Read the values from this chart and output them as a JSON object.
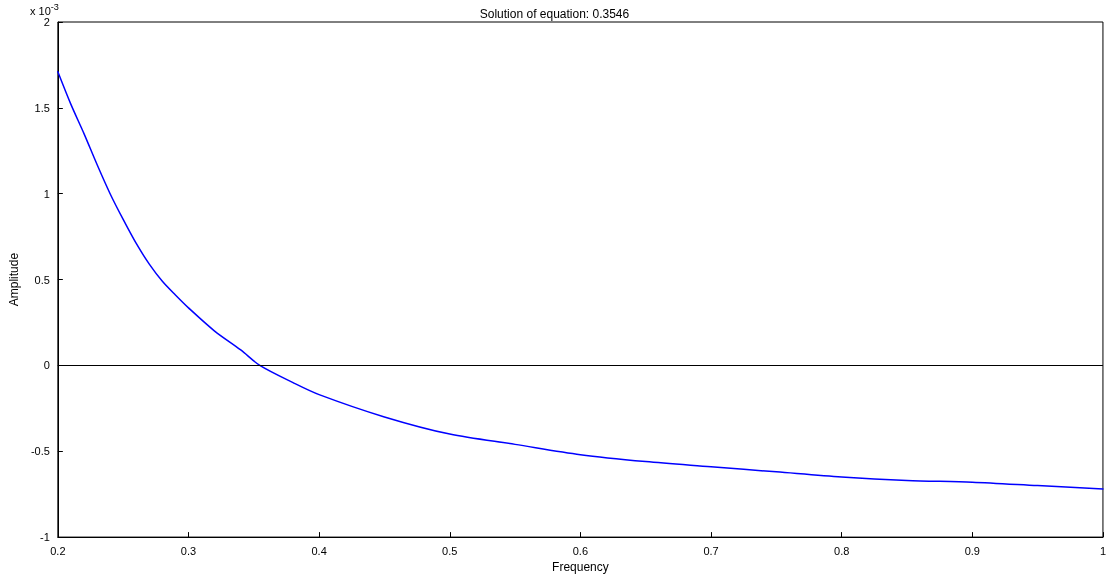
{
  "chart_data": {
    "type": "line",
    "title": "Solution of equation: 0.3546",
    "xlabel": "Frequency",
    "ylabel": "Amplitude",
    "annotations": [
      "x 10$^{-3}$"
    ],
    "series": [
      {
        "color": "#0000ff",
        "x": [
          0.2,
          0.21,
          0.22,
          0.23,
          0.24,
          0.25,
          0.26,
          0.27,
          0.28,
          0.29,
          0.3,
          0.32,
          0.34,
          0.3546,
          0.38,
          0.4,
          0.45,
          0.5,
          0.55,
          0.6,
          0.65,
          0.7,
          0.75,
          0.8,
          0.85,
          0.9,
          0.95,
          1.0
        ],
        "values": [
          1.71,
          1.52,
          1.35,
          1.17,
          1.0,
          0.85,
          0.71,
          0.59,
          0.49,
          0.41,
          0.335,
          0.2,
          0.09,
          0,
          -0.1,
          -0.17,
          -0.3,
          -0.4,
          -0.46,
          -0.52,
          -0.56,
          -0.59,
          -0.62,
          -0.65,
          -0.67,
          -0.68,
          -0.7,
          -0.72
        ]
      }
    ],
    "xlim": [
      0.2,
      1
    ],
    "xticks": [
      0.2,
      0.3,
      0.4,
      0.5,
      0.6,
      0.7,
      0.8,
      0.9,
      1
    ],
    "ylim": [
      -1,
      2
    ],
    "yticks": [
      -1,
      -0.5,
      0,
      0.5,
      1,
      1.5,
      2
    ],
    "ref_lines": [
      {
        "axis": "y",
        "value": 0,
        "color": "#000000"
      }
    ],
    "grid": false,
    "marker": "none",
    "line_style": "solid"
  }
}
